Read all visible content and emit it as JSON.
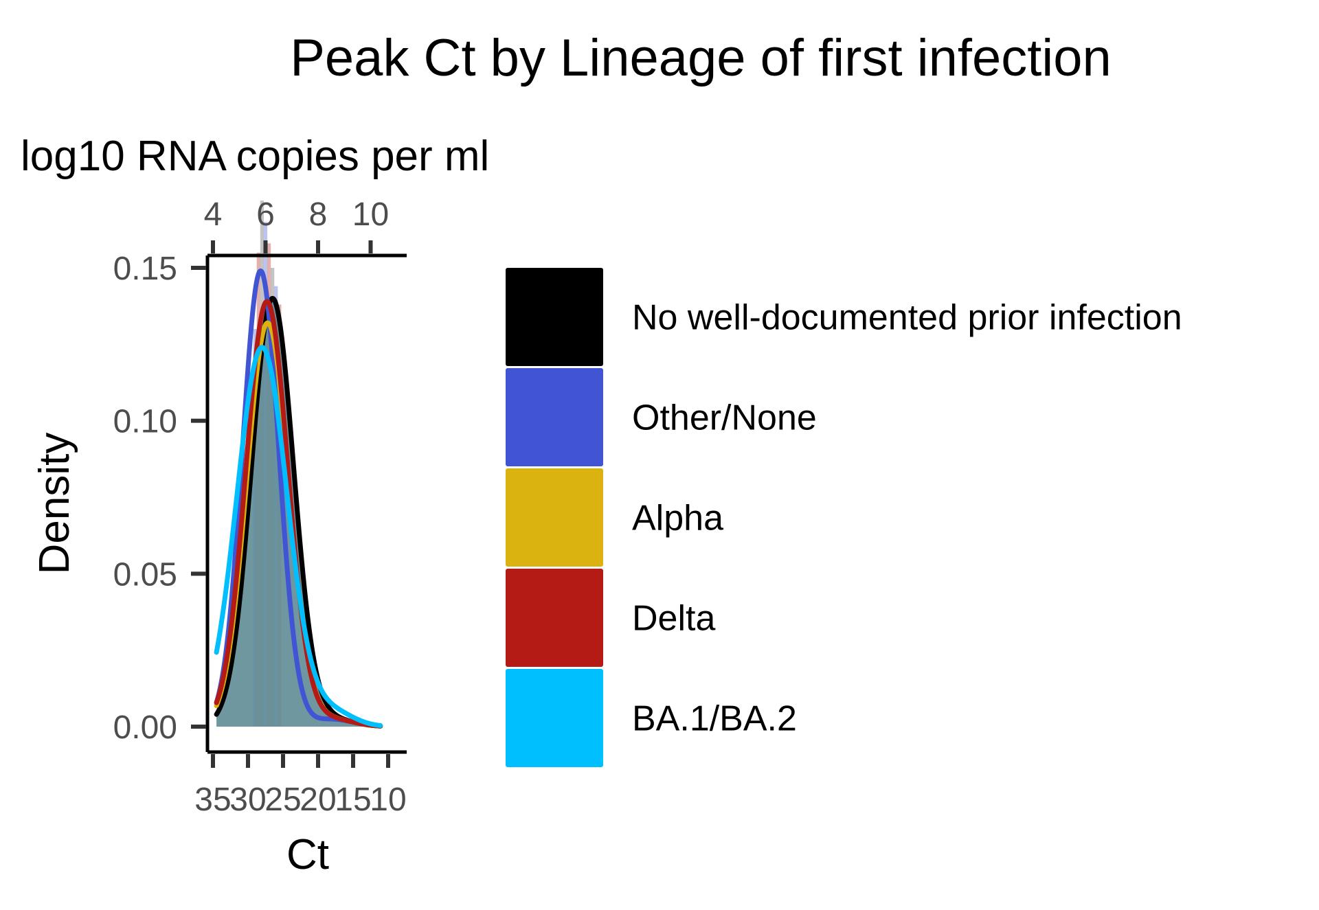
{
  "chart_data": {
    "type": "density",
    "title": "Peak Ct by Lineage of first infection",
    "xlabel": "Ct",
    "ylabel": "Density",
    "x_reversed": true,
    "xlim": [
      35,
      10
    ],
    "ylim": [
      0,
      0.175
    ],
    "x_ticks": [
      35,
      30,
      25,
      20,
      15,
      10
    ],
    "x_tick_labels": [
      "35",
      "30",
      "25",
      "20",
      "15",
      "10"
    ],
    "y_ticks": [
      0,
      0.05,
      0.1,
      0.15
    ],
    "y_tick_labels": [
      "0.00",
      "0.05",
      "0.10",
      "0.15"
    ],
    "secondary_x_axis": {
      "label": "log10 RNA copies per ml",
      "ticks": [
        4,
        6,
        8,
        10
      ],
      "tick_labels": [
        "4",
        "6",
        "8",
        "10"
      ],
      "ticks_at_ct": [
        35,
        27.5,
        20,
        12.5
      ]
    },
    "legend_position": "right",
    "grid": false,
    "series": [
      {
        "name": "No well-documented prior infection",
        "color": "#000000",
        "mean_ct": 26.5,
        "sd": 3.0,
        "peak": 0.14
      },
      {
        "name": "Other/None",
        "color": "#4154d4",
        "mean_ct": 28.2,
        "sd": 2.6,
        "peak": 0.149
      },
      {
        "name": "Alpha",
        "color": "#dbb310",
        "mean_ct": 27.2,
        "sd": 3.0,
        "peak": 0.132
      },
      {
        "name": "Delta",
        "color": "#b31b14",
        "mean_ct": 27.3,
        "sd": 3.0,
        "peak": 0.139
      },
      {
        "name": "BA.1/BA.2",
        "color": "#00bfff",
        "mean_ct": 28.0,
        "sd": 3.6,
        "peak": 0.124
      }
    ],
    "histogram_bins": [
      {
        "ct": 29.0,
        "density": 0.13
      },
      {
        "ct": 28.5,
        "density": 0.155
      },
      {
        "ct": 28.0,
        "density": 0.172
      },
      {
        "ct": 27.5,
        "density": 0.165
      },
      {
        "ct": 27.0,
        "density": 0.158
      },
      {
        "ct": 26.5,
        "density": 0.15
      },
      {
        "ct": 26.0,
        "density": 0.144
      },
      {
        "ct": 25.5,
        "density": 0.138
      }
    ]
  }
}
